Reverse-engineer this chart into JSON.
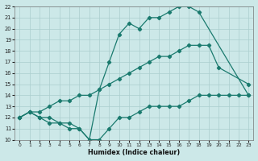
{
  "curve1_x": [
    0,
    1,
    2,
    3,
    4,
    5,
    6,
    7,
    8,
    9,
    10,
    11,
    12,
    13,
    14,
    15,
    16,
    17,
    18,
    23
  ],
  "curve1_y": [
    12,
    12.5,
    12,
    12,
    11.5,
    11.5,
    11,
    10,
    14.5,
    17.0,
    19.5,
    20.5,
    20,
    21,
    21,
    21.5,
    22,
    22,
    21.5,
    14
  ],
  "curve2_x": [
    0,
    1,
    2,
    3,
    4,
    5,
    6,
    7,
    8,
    9,
    10,
    11,
    12,
    13,
    14,
    15,
    16,
    17,
    18,
    19,
    20,
    23
  ],
  "curve2_y": [
    12,
    12.5,
    12.5,
    13,
    13.5,
    13.5,
    14,
    14,
    14.5,
    15,
    15.5,
    16,
    16.5,
    17,
    17.5,
    17.5,
    18,
    18.5,
    18.5,
    18.5,
    16.5,
    15
  ],
  "curve3_x": [
    0,
    1,
    2,
    3,
    4,
    5,
    6,
    7,
    8,
    9,
    10,
    11,
    12,
    13,
    14,
    15,
    16,
    17,
    18,
    19,
    20,
    21,
    22,
    23
  ],
  "curve3_y": [
    12,
    12.5,
    12,
    11.5,
    11.5,
    11,
    11,
    10,
    10,
    11,
    12,
    12,
    12.5,
    13,
    13,
    13,
    13,
    13.5,
    14,
    14,
    14,
    14,
    14,
    14
  ],
  "color": "#1a7a6e",
  "bg_color": "#cce8e8",
  "grid_color": "#aacece",
  "xlabel": "Humidex (Indice chaleur)",
  "ylim": [
    10,
    22
  ],
  "xlim": [
    -0.5,
    23.5
  ],
  "yticks": [
    10,
    11,
    12,
    13,
    14,
    15,
    16,
    17,
    18,
    19,
    20,
    21,
    22
  ],
  "xticks": [
    0,
    1,
    2,
    3,
    4,
    5,
    6,
    7,
    8,
    9,
    10,
    11,
    12,
    13,
    14,
    15,
    16,
    17,
    18,
    19,
    20,
    21,
    22,
    23
  ]
}
